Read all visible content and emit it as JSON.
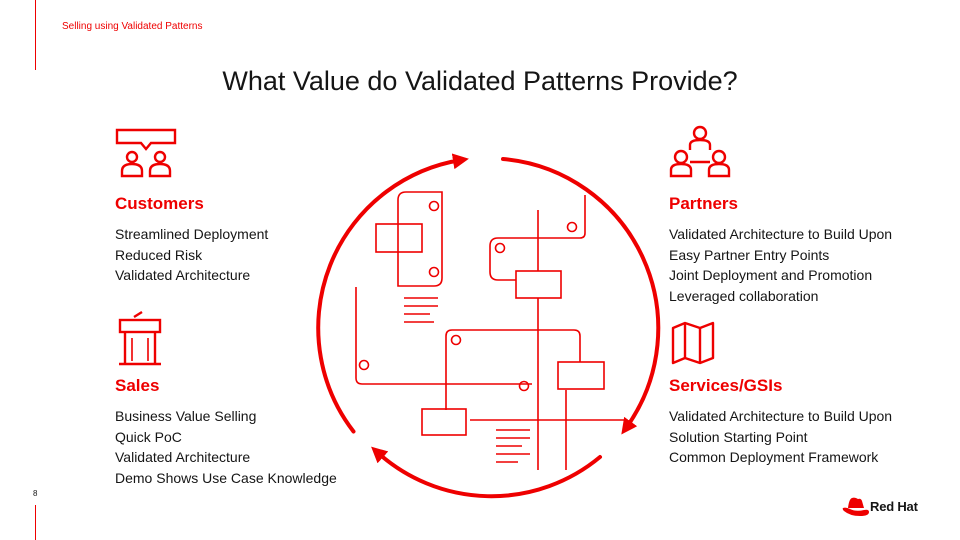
{
  "header": {
    "section_label": "Selling using Validated Patterns",
    "title": "What Value do Validated Patterns Provide?"
  },
  "page_number": "8",
  "brand": {
    "name": "Red Hat",
    "accent": "#ee0000"
  },
  "blocks": {
    "customers": {
      "icon": "speech-bubble-people-icon",
      "heading": "Customers",
      "items": [
        "Streamlined Deployment",
        "Reduced Risk",
        "Validated Architecture"
      ]
    },
    "sales": {
      "icon": "podium-icon",
      "heading": "Sales",
      "items": [
        "Business Value Selling",
        "Quick PoC",
        "Validated Architecture",
        "Demo Shows Use Case  Knowledge"
      ]
    },
    "partners": {
      "icon": "connected-people-icon",
      "heading": "Partners",
      "items": [
        "Validated Architecture to Build Upon",
        "Easy Partner Entry Points",
        "Joint Deployment and Promotion",
        "Leveraged collaboration"
      ]
    },
    "services": {
      "icon": "map-icon",
      "heading": "Services/GSIs",
      "items": [
        "Validated Architecture to Build Upon",
        "Solution Starting Point",
        "Common Deployment Framework"
      ]
    }
  }
}
